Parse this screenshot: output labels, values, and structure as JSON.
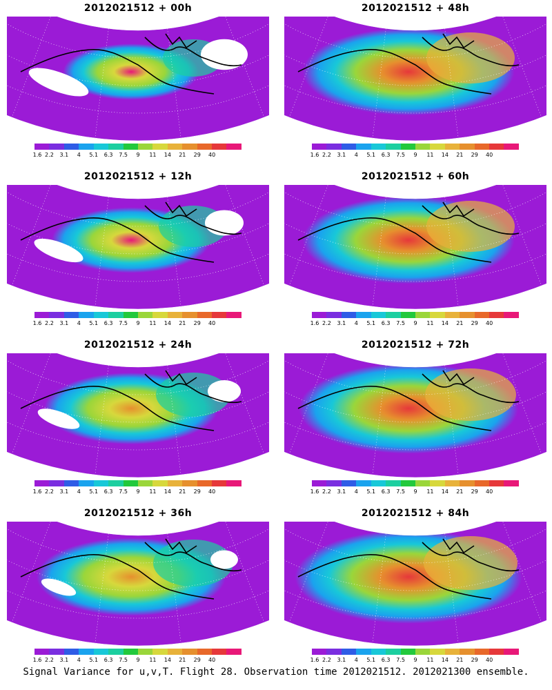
{
  "caption": "Signal Variance for u,v,T. Flight 28. Observation time 2012021512. 2012021300 ensemble.",
  "colorbar": {
    "colors": [
      "#9b1bd6",
      "#7a2ee0",
      "#2f5ce6",
      "#1aa3ee",
      "#18c8d8",
      "#1ccfa0",
      "#22c93c",
      "#9ad63a",
      "#d7d83c",
      "#e8b23a",
      "#e6902e",
      "#e8682a",
      "#e6383a",
      "#e81878"
    ],
    "labels": [
      "1.6",
      "2.2",
      "3.1",
      "4",
      "5.1",
      "6.3",
      "7.5",
      "9",
      "11",
      "14",
      "21",
      "29",
      "40"
    ]
  },
  "panels": [
    {
      "title": "2012021512 + 00h",
      "intensity": 0.35
    },
    {
      "title": "2012021512 + 48h",
      "intensity": 0.85
    },
    {
      "title": "2012021512 + 12h",
      "intensity": 0.5
    },
    {
      "title": "2012021512 + 60h",
      "intensity": 0.85
    },
    {
      "title": "2012021512 + 24h",
      "intensity": 0.6
    },
    {
      "title": "2012021512 + 72h",
      "intensity": 0.9
    },
    {
      "title": "2012021512 + 36h",
      "intensity": 0.7
    },
    {
      "title": "2012021512 + 84h",
      "intensity": 0.95
    }
  ]
}
